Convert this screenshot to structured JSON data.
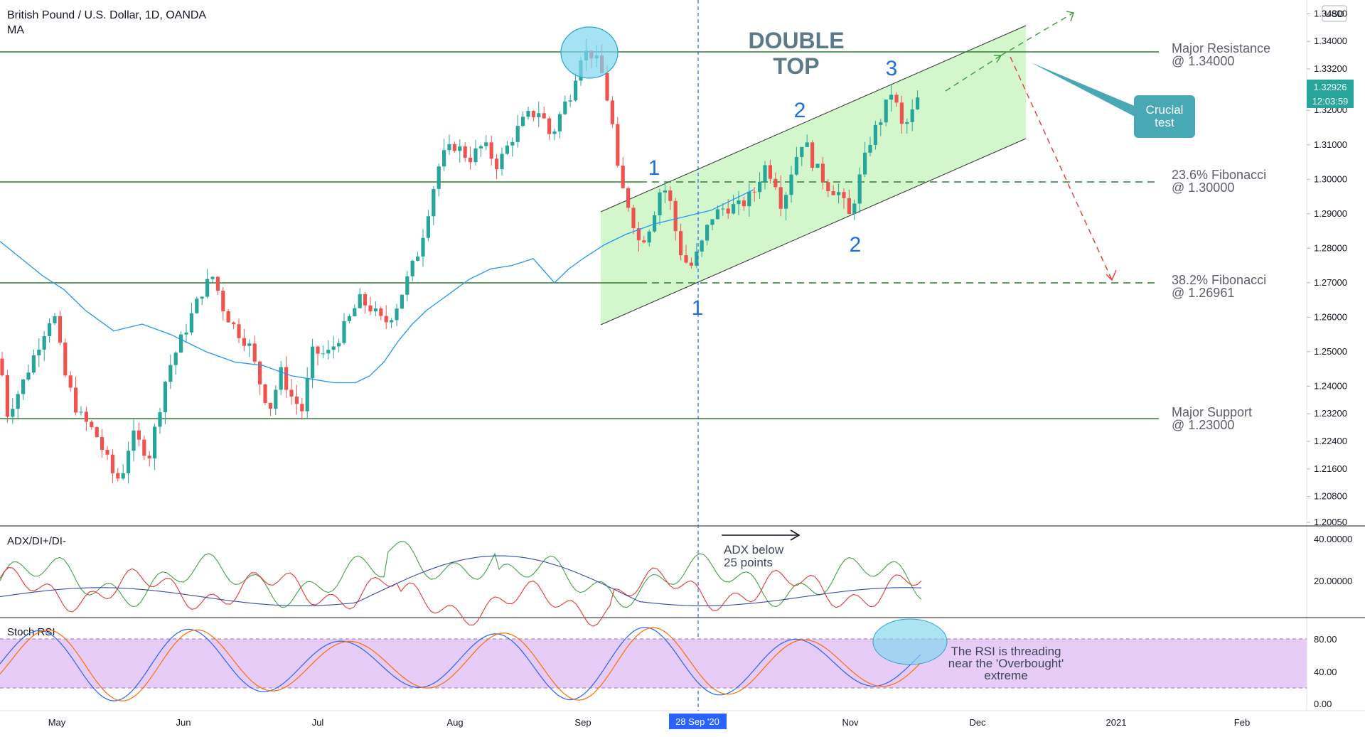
{
  "header": {
    "title": "British Pound / U.S. Dollar, 1D, OANDA",
    "indicator": "MA",
    "currency": "USD"
  },
  "price_axis": {
    "ticks": [
      "1.34800",
      "1.34000",
      "1.33200",
      "1.32000",
      "1.31000",
      "1.30000",
      "1.29000",
      "1.28000",
      "1.27000",
      "1.26000",
      "1.25000",
      "1.24000",
      "1.23200",
      "1.22400",
      "1.21600",
      "1.20800",
      "1.20050"
    ],
    "last_price": "1.32926",
    "countdown": "12:03:59"
  },
  "time_axis": {
    "labels": [
      "May",
      "Jun",
      "Jul",
      "Aug",
      "Sep",
      "Nov",
      "Dec",
      "2021",
      "Feb"
    ],
    "cursor_label": "28 Sep '20"
  },
  "annotations": {
    "double_top_1": "DOUBLE",
    "double_top_2": "TOP",
    "crucial_1": "Crucial",
    "crucial_2": "test",
    "wave_labels": [
      "1",
      "1",
      "2",
      "2",
      "3"
    ],
    "adx_note_1": "ADX below",
    "adx_note_2": "25 points",
    "rsi_note_1": "The RSI is threading",
    "rsi_note_2": "near the 'Overbought'",
    "rsi_note_3": "extreme"
  },
  "levels": [
    {
      "name1": "Major Resistance",
      "name2": "@ 1.34000",
      "price": 1.34
    },
    {
      "name1": "23.6% Fibonacci",
      "name2": "@ 1.30000",
      "price": 1.3
    },
    {
      "name1": "38.2% Fibonacci",
      "name2": "@ 1.26961",
      "price": 1.26961
    },
    {
      "name1": "Major Support",
      "name2": "@ 1.23000",
      "price": 1.23
    }
  ],
  "adx_panel": {
    "label": "ADX/DI+/DI-",
    "ticks": [
      "40.00000",
      "20.00000"
    ]
  },
  "stoch_panel": {
    "label": "Stoch RSI",
    "ticks": [
      "80.00",
      "40.00",
      "0.00"
    ]
  },
  "colors": {
    "up": "#26a69a",
    "down": "#ef5350",
    "ma": "#2196f3",
    "channel_fill": "#ccf5c4",
    "level_line": "#2e7d32",
    "accent_label": "#3d8fb2",
    "wave": "#1e6fd9",
    "callout": "#48a8b4"
  },
  "chart_data": {
    "type": "candlestick",
    "symbol": "GBPUSD",
    "timeframe": "1D",
    "y_range": [
      1.2005,
      1.352
    ],
    "x_range": [
      "2020-05-01",
      "2021-02-15"
    ],
    "candles": [],
    "ma": [
      [
        0,
        1.282
      ],
      [
        60,
        1.272
      ],
      [
        90,
        1.268
      ],
      [
        120,
        1.262
      ],
      [
        160,
        1.256
      ],
      [
        200,
        1.258
      ],
      [
        240,
        1.255
      ],
      [
        290,
        1.25
      ],
      [
        330,
        1.247
      ],
      [
        370,
        1.246
      ],
      [
        410,
        1.243
      ],
      [
        440,
        1.242
      ],
      [
        470,
        1.241
      ],
      [
        500,
        1.241
      ],
      [
        520,
        1.243
      ],
      [
        540,
        1.247
      ],
      [
        560,
        1.253
      ],
      [
        580,
        1.258
      ],
      [
        600,
        1.262
      ],
      [
        620,
        1.265
      ],
      [
        640,
        1.268
      ],
      [
        660,
        1.271
      ],
      [
        690,
        1.274
      ],
      [
        720,
        1.275
      ],
      [
        750,
        1.277
      ],
      [
        780,
        1.27
      ],
      [
        800,
        1.274
      ],
      [
        820,
        1.277
      ],
      [
        850,
        1.281
      ],
      [
        880,
        1.284
      ],
      [
        920,
        1.287
      ],
      [
        960,
        1.289
      ],
      [
        1000,
        1.291
      ],
      [
        1030,
        1.294
      ],
      [
        1060,
        1.297
      ]
    ]
  }
}
